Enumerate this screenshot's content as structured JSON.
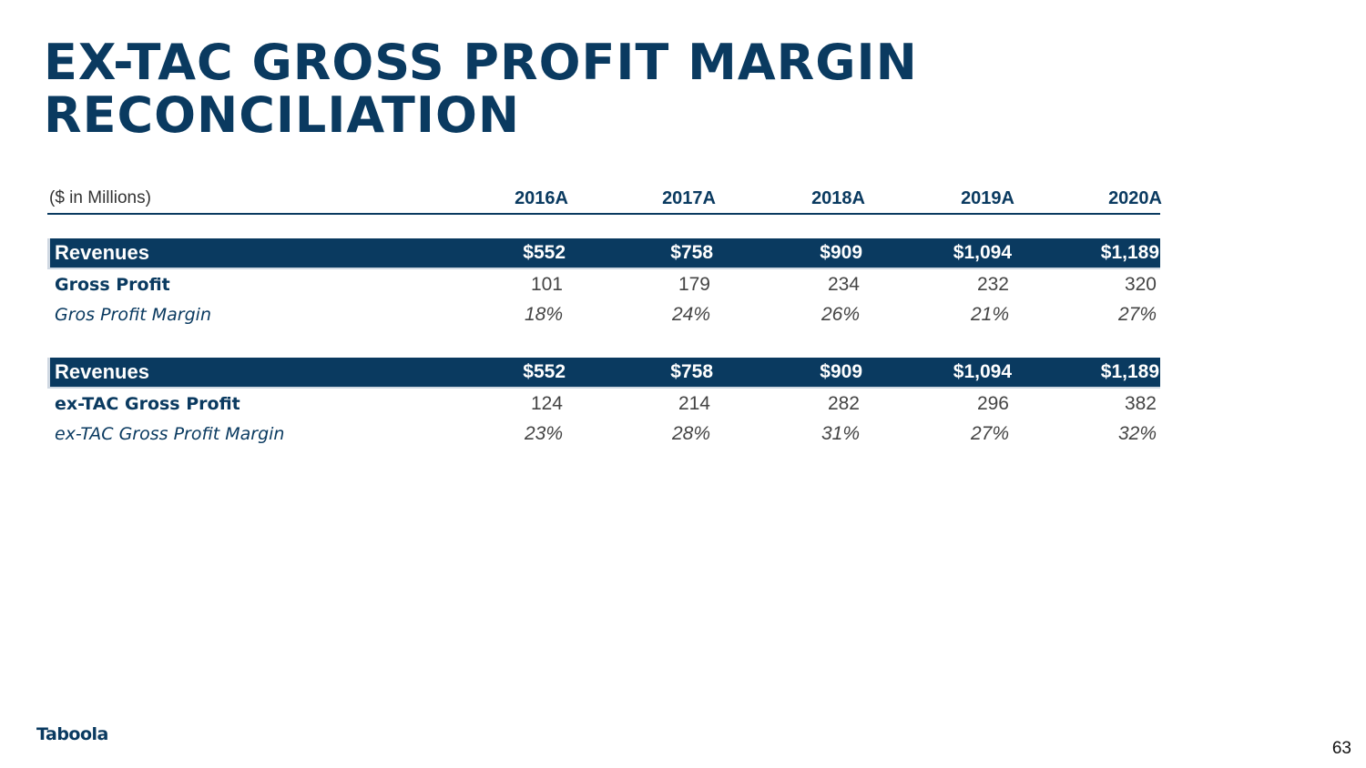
{
  "title": {
    "line1": "EX-TAC GROSS PROFIT MARGIN",
    "line2": "RECONCILIATION"
  },
  "table": {
    "unit_label": "($ in Millions)",
    "years": [
      "2016A",
      "2017A",
      "2018A",
      "2019A",
      "2020A"
    ],
    "section1": {
      "revenues": {
        "label": "Revenues",
        "values": [
          "$552",
          "$758",
          "$909",
          "$1,094",
          "$1,189"
        ]
      },
      "profit": {
        "label": "Gross Profit",
        "values": [
          "101",
          "179",
          "234",
          "232",
          "320"
        ]
      },
      "margin": {
        "label": "Gros Profit Margin",
        "values": [
          "18%",
          "24%",
          "26%",
          "21%",
          "27%"
        ]
      }
    },
    "section2": {
      "revenues": {
        "label": "Revenues",
        "values": [
          "$552",
          "$758",
          "$909",
          "$1,094",
          "$1,189"
        ]
      },
      "profit": {
        "label": "ex-TAC Gross Profit",
        "values": [
          "124",
          "214",
          "282",
          "296",
          "382"
        ]
      },
      "margin": {
        "label": "ex-TAC Gross Profit Margin",
        "values": [
          "23%",
          "28%",
          "31%",
          "27%",
          "32%"
        ]
      }
    }
  },
  "footer": {
    "logo_text": "Taboola",
    "page_number": "63"
  },
  "colors": {
    "brand_navy": "#0a3a60"
  }
}
